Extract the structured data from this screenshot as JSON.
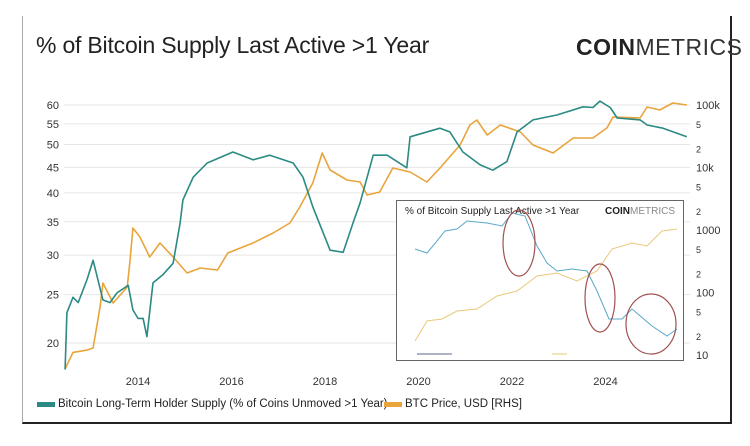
{
  "title": "% of Bitcoin Supply Last Active >1 Year",
  "logo": {
    "bold": "COIN",
    "light": "METRICS"
  },
  "colors": {
    "lth": "#2b8a84",
    "price": "#e9a43c",
    "grid": "#e6e6e6"
  },
  "legend": [
    {
      "label": "Bitcoin Long-Term Holder Supply (% of Coins Unmoved >1 Year)",
      "color": "#2b8a84"
    },
    {
      "label": "BTC Price, USD [RHS]",
      "color": "#e9a43c"
    }
  ],
  "inset": {
    "title": "% of Bitcoin Supply Last Active >1 Year",
    "logo": {
      "bold": "COIN",
      "light": "METRICS"
    }
  },
  "chart_data": {
    "type": "line",
    "title": "% of Bitcoin Supply Last Active >1 Year",
    "x_ticks": [
      "2014",
      "2016",
      "2018",
      "2020",
      "2022",
      "2024"
    ],
    "xlim": [
      2012.4,
      2025.8
    ],
    "y_left": {
      "scale": "log",
      "ylim": [
        17,
        63
      ],
      "ticks": [
        "20",
        "25",
        "30",
        "35",
        "40",
        "45",
        "50",
        "55",
        "60"
      ]
    },
    "y_right": {
      "scale": "log",
      "ylim": [
        6,
        130000
      ],
      "ticks": [
        "10",
        "2",
        "5",
        "100",
        "2",
        "5",
        "1000",
        "2",
        "5",
        "10k",
        "2",
        "5",
        "100k"
      ]
    },
    "grid": true,
    "legend_position": "bottom",
    "series": [
      {
        "name": "Bitcoin Long-Term Holder Supply (% of Coins Unmoved >1 Year)",
        "axis": "left",
        "x": [
          2012.44,
          2012.48,
          2012.61,
          2012.72,
          2012.91,
          2013.04,
          2013.25,
          2013.4,
          2013.55,
          2013.79,
          2013.89,
          2014.0,
          2014.11,
          2014.19,
          2014.32,
          2014.53,
          2014.75,
          2014.9,
          2014.96,
          2015.18,
          2015.48,
          2016.03,
          2016.46,
          2016.82,
          2017.32,
          2017.53,
          2017.74,
          2018.11,
          2018.39,
          2018.6,
          2018.75,
          2019.03,
          2019.33,
          2019.75,
          2019.82,
          2020.46,
          2020.67,
          2020.95,
          2021.32,
          2021.59,
          2021.89,
          2022.11,
          2022.45,
          2022.96,
          2023.52,
          2023.73,
          2023.88,
          2024.1,
          2024.25,
          2024.74,
          2024.89,
          2025.23,
          2025.74
        ],
        "y": [
          17.7,
          23.0,
          24.7,
          24.1,
          26.8,
          29.3,
          24.4,
          24.1,
          25.2,
          26.1,
          23.3,
          22.4,
          22.4,
          20.6,
          26.4,
          27.4,
          28.9,
          34.8,
          38.7,
          43.0,
          45.9,
          48.3,
          46.6,
          47.6,
          45.9,
          43.0,
          37.5,
          30.7,
          30.4,
          34.8,
          38.2,
          47.6,
          47.6,
          44.9,
          51.8,
          53.9,
          53.0,
          48.3,
          45.5,
          44.4,
          46.2,
          53.0,
          56.0,
          57.3,
          59.5,
          59.3,
          61.1,
          59.3,
          56.5,
          56.0,
          54.7,
          53.9,
          51.8
        ]
      },
      {
        "name": "BTC Price, USD [RHS]",
        "axis": "right",
        "x": [
          2012.44,
          2012.61,
          2012.91,
          2013.04,
          2013.19,
          2013.25,
          2013.4,
          2013.47,
          2013.77,
          2013.83,
          2013.89,
          2014.04,
          2014.25,
          2014.47,
          2014.75,
          2015.05,
          2015.33,
          2015.7,
          2015.92,
          2016.46,
          2016.89,
          2017.25,
          2017.46,
          2017.74,
          2017.94,
          2018.11,
          2018.47,
          2018.75,
          2018.9,
          2019.17,
          2019.45,
          2019.82,
          2020.18,
          2020.46,
          2020.89,
          2021.1,
          2021.25,
          2021.47,
          2021.75,
          2022.18,
          2022.45,
          2022.88,
          2023.31,
          2023.73,
          2024.03,
          2024.16,
          2024.74,
          2024.89,
          2025.16,
          2025.44,
          2025.74
        ],
        "y": [
          6,
          11,
          12,
          13,
          59,
          142,
          85,
          68,
          122,
          331,
          1076,
          773,
          370,
          619,
          370,
          205,
          247,
          229,
          429,
          619,
          895,
          1294,
          2333,
          5649,
          17061,
          9120,
          6310,
          5861,
          3631,
          4055,
          9817,
          8472,
          5861,
          9817,
          22909,
          47863,
          57544,
          33113,
          47863,
          36983,
          22909,
          17061,
          29648,
          29648,
          42855,
          64269,
          61944,
          92897,
          83176,
          107647,
          100000
        ]
      }
    ]
  }
}
